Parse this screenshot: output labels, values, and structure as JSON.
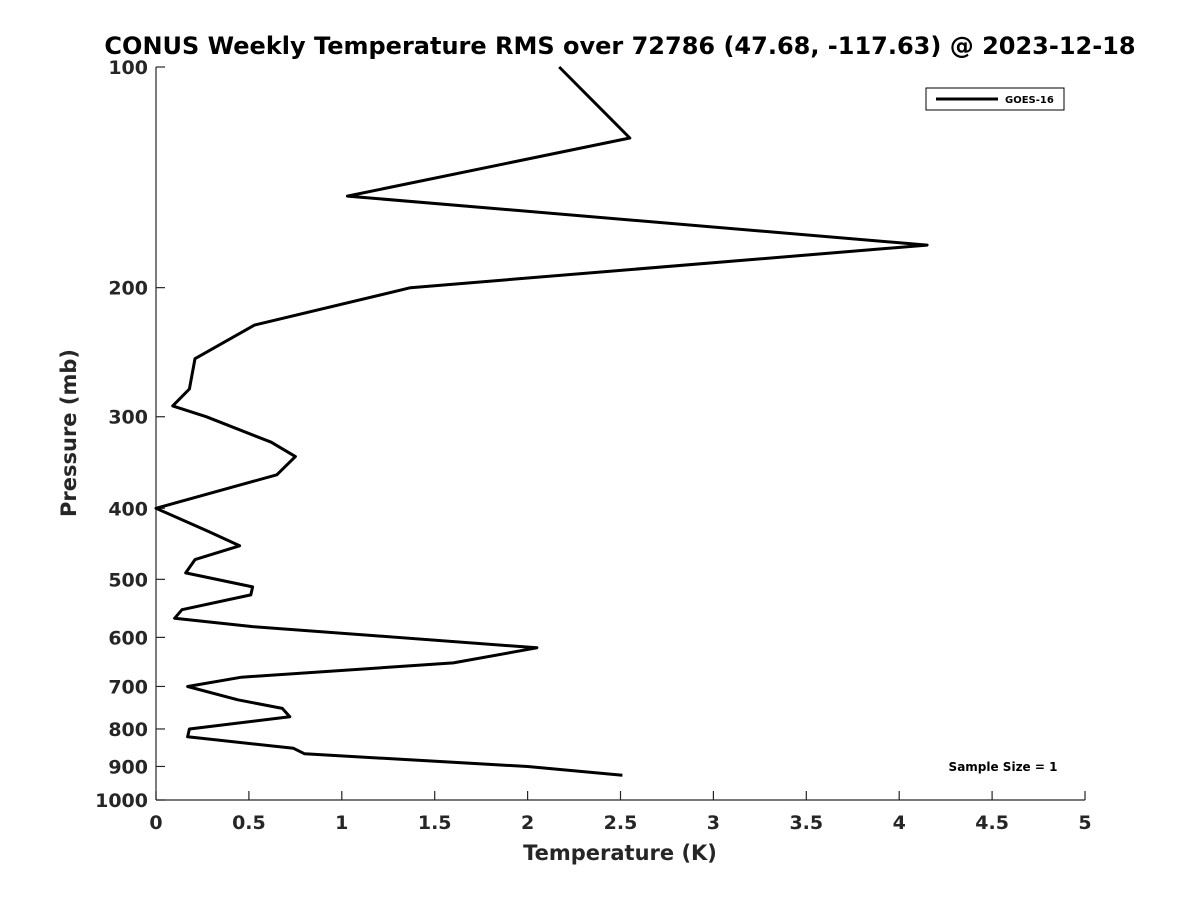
{
  "chart_data": {
    "type": "line",
    "title": "CONUS Weekly Temperature RMS over 72786 (47.68, -117.63) @ 2023-12-18",
    "xlabel": "Temperature (K)",
    "ylabel": "Pressure (mb)",
    "xlim": [
      0,
      5
    ],
    "ylim": [
      100,
      1000
    ],
    "y_scale": "log",
    "y_reversed": true,
    "x_ticks": [
      0,
      0.5,
      1,
      1.5,
      2,
      2.5,
      3,
      3.5,
      4,
      4.5,
      5
    ],
    "x_tick_labels": [
      "0",
      "0.5",
      "1",
      "1.5",
      "2",
      "2.5",
      "3",
      "3.5",
      "4",
      "4.5",
      "5"
    ],
    "y_ticks": [
      100,
      200,
      300,
      400,
      500,
      600,
      700,
      800,
      900,
      1000
    ],
    "y_tick_labels": [
      "100",
      "200",
      "300",
      "400",
      "500",
      "600",
      "700",
      "800",
      "900",
      "1000"
    ],
    "grid": false,
    "legend_position": "top-right",
    "series": [
      {
        "name": "GOES-16",
        "color": "#000000",
        "points": [
          {
            "x": 2.17,
            "p": 100
          },
          {
            "x": 2.55,
            "p": 125
          },
          {
            "x": 1.03,
            "p": 150
          },
          {
            "x": 4.15,
            "p": 175
          },
          {
            "x": 1.37,
            "p": 200
          },
          {
            "x": 0.53,
            "p": 225
          },
          {
            "x": 0.21,
            "p": 250
          },
          {
            "x": 0.18,
            "p": 275
          },
          {
            "x": 0.09,
            "p": 290
          },
          {
            "x": 0.27,
            "p": 300
          },
          {
            "x": 0.62,
            "p": 325
          },
          {
            "x": 0.75,
            "p": 340
          },
          {
            "x": 0.65,
            "p": 360
          },
          {
            "x": 0.0,
            "p": 400
          },
          {
            "x": 0.28,
            "p": 430
          },
          {
            "x": 0.45,
            "p": 450
          },
          {
            "x": 0.21,
            "p": 470
          },
          {
            "x": 0.16,
            "p": 490
          },
          {
            "x": 0.52,
            "p": 512
          },
          {
            "x": 0.51,
            "p": 525
          },
          {
            "x": 0.14,
            "p": 550
          },
          {
            "x": 0.1,
            "p": 565
          },
          {
            "x": 0.52,
            "p": 580
          },
          {
            "x": 2.05,
            "p": 620
          },
          {
            "x": 1.6,
            "p": 650
          },
          {
            "x": 0.46,
            "p": 680
          },
          {
            "x": 0.17,
            "p": 700
          },
          {
            "x": 0.44,
            "p": 730
          },
          {
            "x": 0.68,
            "p": 750
          },
          {
            "x": 0.72,
            "p": 770
          },
          {
            "x": 0.18,
            "p": 800
          },
          {
            "x": 0.17,
            "p": 820
          },
          {
            "x": 0.74,
            "p": 850
          },
          {
            "x": 0.8,
            "p": 865
          },
          {
            "x": 2.0,
            "p": 900
          },
          {
            "x": 2.51,
            "p": 925
          }
        ]
      }
    ],
    "annotation": "Sample Size = 1"
  }
}
